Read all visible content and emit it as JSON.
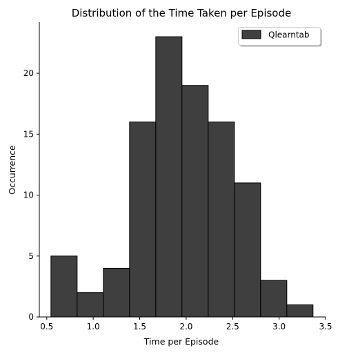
{
  "chart_data": {
    "type": "bar",
    "title": "Distribution of the Time Taken per Episode",
    "xlabel": "Time per Episode",
    "ylabel": "Occurrence",
    "xlim": [
      0.42,
      3.5
    ],
    "ylim": [
      0,
      24.2
    ],
    "xticks": [
      "0.5",
      "1.0",
      "1.5",
      "2.0",
      "2.5",
      "3.0",
      "3.5"
    ],
    "xtick_values": [
      0.5,
      1.0,
      1.5,
      2.0,
      2.5,
      3.0,
      3.5
    ],
    "yticks": [
      "0",
      "5",
      "10",
      "15",
      "20"
    ],
    "ytick_values": [
      0,
      5,
      10,
      15,
      20
    ],
    "bin_edges": [
      0.545,
      0.827,
      1.109,
      1.391,
      1.673,
      1.955,
      2.237,
      2.519,
      2.801,
      3.083,
      3.365
    ],
    "values": [
      5,
      2,
      4,
      16,
      23,
      19,
      16,
      11,
      3,
      1
    ],
    "series_name": "Qlearntab",
    "bar_color": "#3f3f3f",
    "edge_color": "#000000",
    "grid": false,
    "legend_position": "top-right"
  }
}
